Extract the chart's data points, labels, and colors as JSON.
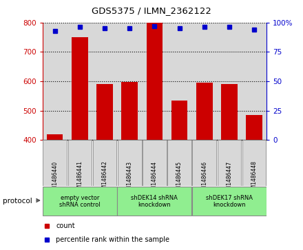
{
  "title": "GDS5375 / ILMN_2362122",
  "samples": [
    "GSM1486440",
    "GSM1486441",
    "GSM1486442",
    "GSM1486443",
    "GSM1486444",
    "GSM1486445",
    "GSM1486446",
    "GSM1486447",
    "GSM1486448"
  ],
  "counts": [
    420,
    750,
    590,
    598,
    800,
    535,
    596,
    591,
    484
  ],
  "percentile_ranks": [
    93,
    96,
    95,
    95,
    97,
    95,
    96,
    96,
    94
  ],
  "ylim_left": [
    400,
    800
  ],
  "ylim_right": [
    0,
    100
  ],
  "yticks_left": [
    400,
    500,
    600,
    700,
    800
  ],
  "yticks_right": [
    0,
    25,
    50,
    75,
    100
  ],
  "bar_color": "#cc0000",
  "dot_color": "#0000cc",
  "groups": [
    {
      "label": "empty vector\nshRNA control",
      "start": 0,
      "end": 3,
      "color": "#90ee90"
    },
    {
      "label": "shDEK14 shRNA\nknockdown",
      "start": 3,
      "end": 6,
      "color": "#90ee90"
    },
    {
      "label": "shDEK17 shRNA\nknockdown",
      "start": 6,
      "end": 9,
      "color": "#90ee90"
    }
  ],
  "legend_count_color": "#cc0000",
  "legend_dot_color": "#0000cc",
  "left_axis_color": "#cc0000",
  "right_axis_color": "#0000cc",
  "plot_bg_color": "#d8d8d8",
  "grid_color": "#000000",
  "protocol_label": "protocol"
}
